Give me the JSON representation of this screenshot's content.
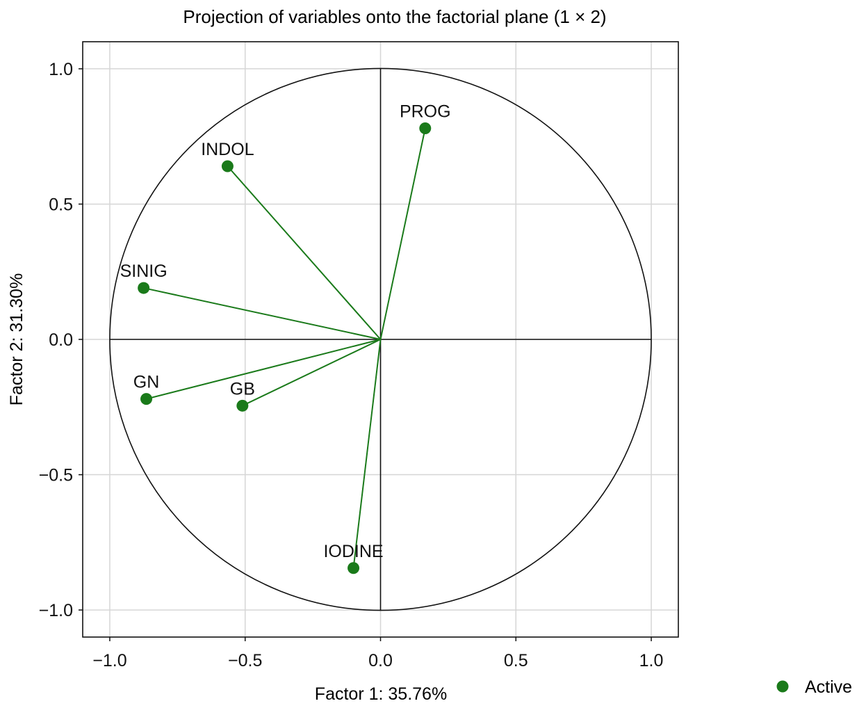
{
  "chart_data": {
    "type": "scatter",
    "title": "Projection of variables onto the factorial plane (1 × 2)",
    "xlabel": "Factor 1: 35.76%",
    "ylabel": "Factor 2: 31.30%",
    "xlim": [
      -1.1,
      1.1
    ],
    "ylim": [
      -1.1,
      1.1
    ],
    "x_ticks": [
      -1.0,
      -0.5,
      0.0,
      0.5,
      1.0
    ],
    "y_ticks": [
      1.0,
      0.5,
      0.0,
      -0.5,
      -1.0
    ],
    "x_tick_labels": [
      "−1.0",
      "−0.5",
      "0.0",
      "0.5",
      "1.0"
    ],
    "y_tick_labels": [
      "1.0",
      "0.5",
      "0.0",
      "−0.5",
      "−1.0"
    ],
    "grid": true,
    "unit_circle": true,
    "vectors_from_origin": true,
    "series": [
      {
        "name": "Active",
        "color": "#1a7a1a",
        "points": [
          {
            "label": "PROG",
            "x": 0.165,
            "y": 0.78
          },
          {
            "label": "INDOL",
            "x": -0.565,
            "y": 0.64
          },
          {
            "label": "SINIG",
            "x": -0.875,
            "y": 0.19
          },
          {
            "label": "GN",
            "x": -0.865,
            "y": -0.22
          },
          {
            "label": "GB",
            "x": -0.51,
            "y": -0.245
          },
          {
            "label": "IODINE",
            "x": -0.1,
            "y": -0.845
          }
        ]
      }
    ],
    "legend": {
      "position": "bottom-right",
      "entries": [
        "Active"
      ]
    }
  }
}
